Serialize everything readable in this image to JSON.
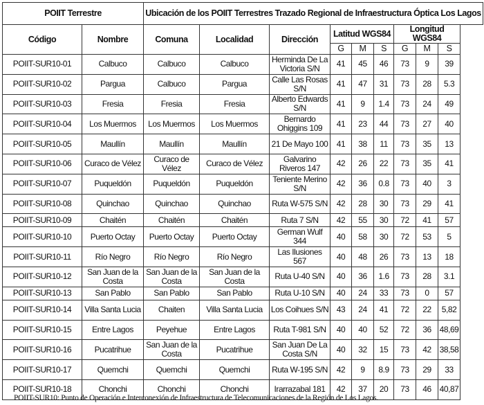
{
  "header": {
    "group_left": "POIIT Terrestre",
    "group_right": "Ubicación de los POIIT Terrestres Trazado Regional de Infraestructura Óptica Los Lagos",
    "columns": [
      "Código",
      "Nombre",
      "Comuna",
      "Localidad",
      "Dirección"
    ],
    "lat_label": "Latitud WGS84",
    "lon_label": "Longitud WGS84",
    "sub": [
      "G",
      "M",
      "S",
      "G",
      "M",
      "S"
    ]
  },
  "rows": [
    [
      "POIIT-SUR10-01",
      "Calbuco",
      "Calbuco",
      "Calbuco",
      "Herminda De La Victoria S/N",
      "41",
      "45",
      "46",
      "73",
      "9",
      "39"
    ],
    [
      "POIIT-SUR10-02",
      "Pargua",
      "Calbuco",
      "Pargua",
      "Calle Las Rosas S/N",
      "41",
      "47",
      "31",
      "73",
      "28",
      "5.3"
    ],
    [
      "POIIT-SUR10-03",
      "Fresia",
      "Fresia",
      "Fresia",
      "Alberto Edwards S/N",
      "41",
      "9",
      "1.4",
      "73",
      "24",
      "49"
    ],
    [
      "POIIT-SUR10-04",
      "Los Muermos",
      "Los Muermos",
      "Los Muermos",
      "Bernardo Ohiggins 109",
      "41",
      "23",
      "44",
      "73",
      "27",
      "40"
    ],
    [
      "POIIT-SUR10-05",
      "Maullín",
      "Maullín",
      "Maullín",
      "21 De Mayo 100",
      "41",
      "38",
      "11",
      "73",
      "35",
      "13"
    ],
    [
      "POIIT-SUR10-06",
      "Curaco de Vélez",
      "Curaco de Vélez",
      "Curaco de Vélez",
      "Galvarino Riveros 147",
      "42",
      "26",
      "22",
      "73",
      "35",
      "41"
    ],
    [
      "POIIT-SUR10-07",
      "Puqueldón",
      "Puqueldón",
      "Puqueldón",
      "Teniente Merino S/N",
      "42",
      "36",
      "0.8",
      "73",
      "40",
      "3"
    ],
    [
      "POIIT-SUR10-08",
      "Quinchao",
      "Quinchao",
      "Quinchao",
      "Ruta W-575 S/N",
      "42",
      "28",
      "30",
      "73",
      "29",
      "41"
    ],
    [
      "POIIT-SUR10-09",
      "Chaitén",
      "Chaitén",
      "Chaitén",
      "Ruta 7 S/N",
      "42",
      "55",
      "30",
      "72",
      "41",
      "57"
    ],
    [
      "POIIT-SUR10-10",
      "Puerto Octay",
      "Puerto Octay",
      "Puerto Octay",
      "German Wulf 344",
      "40",
      "58",
      "30",
      "72",
      "53",
      "5"
    ],
    [
      "POIIT-SUR10-11",
      "Río Negro",
      "Río Negro",
      "Río Negro",
      "Las Ilusiones 567",
      "40",
      "48",
      "26",
      "73",
      "13",
      "18"
    ],
    [
      "POIIT-SUR10-12",
      "San Juan de la Costa",
      "San Juan de la Costa",
      "San Juan de la Costa",
      "Ruta U-40 S/N",
      "40",
      "36",
      "1.6",
      "73",
      "28",
      "3.1"
    ],
    [
      "POIIT-SUR10-13",
      "San Pablo",
      "San Pablo",
      "San Pablo",
      "Ruta U-10 S/N",
      "40",
      "24",
      "33",
      "73",
      "0",
      "57"
    ],
    [
      "POIIT-SUR10-14",
      "Villa Santa Lucia",
      "Chaiten",
      "Villa Santa Lucia",
      "Los Coihues S/N",
      "43",
      "24",
      "41",
      "72",
      "22",
      "5,82"
    ],
    [
      "POIIT-SUR10-15",
      "Entre Lagos",
      "Peyehue",
      "Entre Lagos",
      "Ruta T-981 S/N",
      "40",
      "40",
      "52",
      "72",
      "36",
      "48,69"
    ],
    [
      "POIIT-SUR10-16",
      "Pucatrihue",
      "San Juan de la Costa",
      "Pucatrihue",
      "San Juan De La Costa S/N",
      "40",
      "32",
      "15",
      "73",
      "42",
      "38,58"
    ],
    [
      "POIIT-SUR10-17",
      "Quemchi",
      "Quemchi",
      "Quemchi",
      "Ruta W-195 S/N",
      "42",
      "9",
      "8.9",
      "73",
      "29",
      "33"
    ],
    [
      "POIIT-SUR10-18",
      "Chonchi",
      "Chonchi",
      "Chonchi",
      "Irarrazabal 181",
      "42",
      "37",
      "20",
      "73",
      "46",
      "40,87"
    ]
  ],
  "footnote": "POIIT-SUR10: Punto de Operación e Interconexión de Infraestructura de Telecomunicaciones de la Región de Los Lagos."
}
